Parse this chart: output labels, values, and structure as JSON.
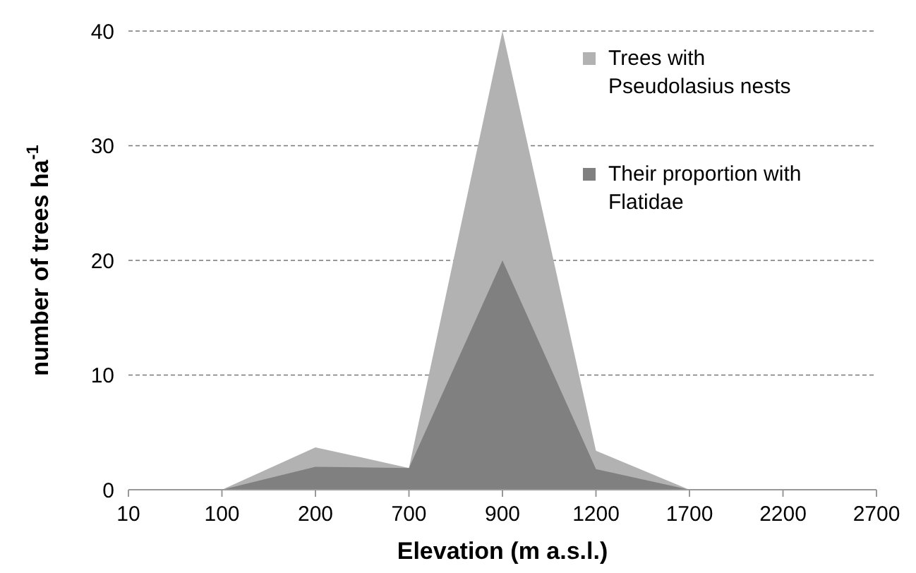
{
  "chart_data": {
    "type": "area",
    "xlabel": "Elevation (m a.s.l.)",
    "ylabel": "number of trees ha$^{-1}$",
    "categories": [
      "10",
      "100",
      "200",
      "700",
      "900",
      "1200",
      "1700",
      "2200",
      "2700"
    ],
    "series": [
      {
        "name": "Trees with Pseudolasius nests",
        "color": "#b2b2b2",
        "values": [
          null,
          0,
          3.7,
          1.9,
          40,
          3.4,
          0,
          null,
          null
        ]
      },
      {
        "name": "Their proportion with Flatidae",
        "color": "#808080",
        "values": [
          null,
          0,
          2,
          1.9,
          20,
          1.8,
          0,
          null,
          null
        ]
      }
    ],
    "ylim": [
      0,
      40
    ],
    "yticks": [
      0,
      10,
      20,
      30,
      40
    ],
    "grid": "y",
    "legend": "right"
  }
}
